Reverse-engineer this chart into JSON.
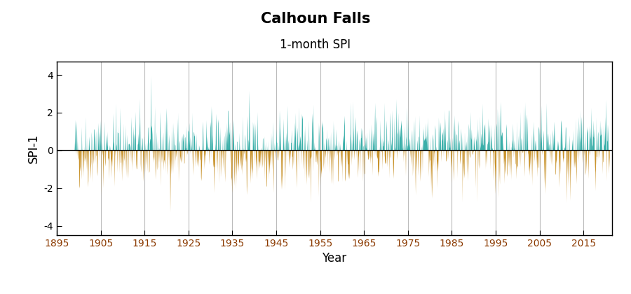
{
  "title": "Calhoun Falls",
  "subtitle": "1-month SPI",
  "ylabel": "SPI-1",
  "xlabel": "Year",
  "xlim": [
    1895.5,
    2021.5
  ],
  "ylim": [
    -4.5,
    4.7
  ],
  "yticks": [
    -4,
    -2,
    0,
    2,
    4
  ],
  "xticks": [
    1895,
    1905,
    1915,
    1925,
    1935,
    1945,
    1955,
    1965,
    1975,
    1985,
    1995,
    2005,
    2015
  ],
  "start_year": 1899,
  "start_month": 1,
  "end_year": 2020,
  "end_month": 12,
  "color_positive": "#3aafa9",
  "color_negative": "#c8922a",
  "background_color": "#ffffff",
  "grid_color": "#bbbbbb",
  "title_fontsize": 15,
  "subtitle_fontsize": 12,
  "label_fontsize": 12,
  "tick_fontsize": 10,
  "tick_color": "#8b3a00",
  "seed": 42,
  "n_months": 1464
}
